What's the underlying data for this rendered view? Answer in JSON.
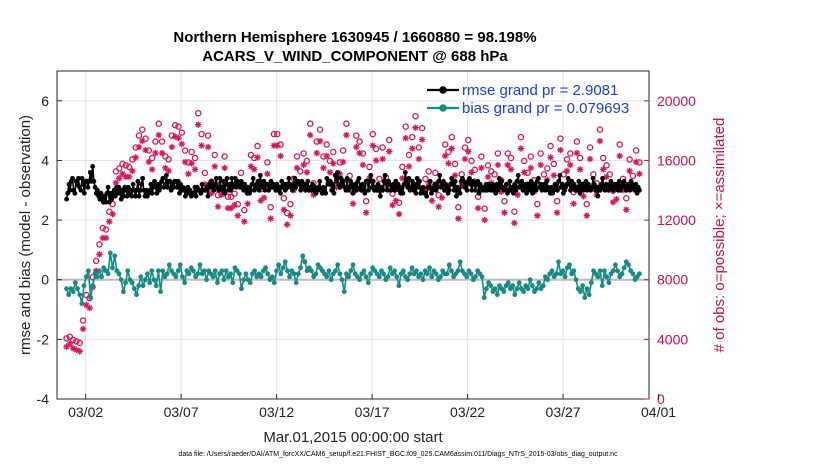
{
  "chart_data": {
    "type": "line",
    "title_line1": "Northern Hemisphere 1630945 / 1660880 = 98.198%",
    "title_line2": "ACARS_V_WIND_COMPONENT @ 688 hPa",
    "xlabel": "Mar.01,2015 00:00:00 start",
    "ylabel_left": "rmse and bias (model - observation)",
    "ylabel_right": "# of obs: o=possible; ×=assimilated",
    "footnote": "data file: /Users/raeder/DAI/ATM_forcXX/CAM6_setup/f.e21.FHIST_BGC.f09_025.CAM6assim.011/Diags_NTrS_2015-03/obs_diag_output.nc",
    "x_range_days": [
      0.5,
      31.5
    ],
    "x_ticks": [
      {
        "day": 2,
        "label": "03/02"
      },
      {
        "day": 7,
        "label": "03/07"
      },
      {
        "day": 12,
        "label": "03/12"
      },
      {
        "day": 17,
        "label": "03/17"
      },
      {
        "day": 22,
        "label": "03/22"
      },
      {
        "day": 27,
        "label": "03/27"
      },
      {
        "day": 32,
        "label": "04/01"
      }
    ],
    "ylim_left": [
      -4,
      7
    ],
    "yticks_left": [
      "-4",
      "-2",
      "0",
      "2",
      "4",
      "6"
    ],
    "ylim_right": [
      0,
      22000
    ],
    "yticks_right": [
      "0",
      "4000",
      "8000",
      "12000",
      "16000",
      "20000"
    ],
    "colors": {
      "rmse": "#000000",
      "bias": "#168a85",
      "obs": "#d6165c",
      "zero": "#bbbbbb",
      "legend_text": "#1a3fd6"
    },
    "legend": [
      {
        "name": "rmse grand pr = 2.9081",
        "series": "rmse"
      },
      {
        "name": "bias grand pr = 0.079693",
        "series": "bias"
      }
    ],
    "rmse": [
      2.7,
      2.9,
      3.2,
      3.0,
      3.3,
      3.4,
      3.0,
      2.9,
      3.3,
      3.2,
      3.4,
      3.1,
      3.0,
      3.4,
      3.2,
      2.9,
      3.3,
      3.3,
      3.1,
      3.3,
      3.6,
      3.3,
      3.8,
      3.3,
      3.1,
      2.9,
      3.0,
      2.8,
      2.7,
      2.9,
      2.7,
      2.6,
      2.8,
      2.6,
      2.9,
      3.1,
      2.6,
      2.9,
      2.7,
      2.9,
      3.0,
      2.8,
      3.1,
      2.9,
      3.1,
      2.9,
      2.7,
      3.0,
      2.8,
      3.1,
      3.0,
      2.8,
      3.1,
      2.9,
      3.0,
      2.8,
      3.2,
      3.0,
      2.8,
      3.0,
      3.3,
      2.8,
      3.0,
      3.2,
      3.4,
      3.0,
      2.8,
      3.0,
      2.8,
      2.9,
      3.0,
      3.2,
      2.9,
      3.1,
      3.3,
      3.1,
      2.9,
      3.2,
      3.0,
      3.1,
      3.3,
      3.4,
      3.1,
      3.2,
      3.5,
      3.1,
      3.3,
      3.3,
      3.0,
      3.2,
      3.1,
      3.3,
      3.3,
      3.1,
      3.3,
      2.9,
      3.2,
      3.0,
      3.1,
      3.0,
      2.8,
      3.0,
      3.1,
      2.9,
      3.0,
      2.8,
      2.9,
      2.9,
      3.1,
      2.8,
      3.1,
      3.0,
      3.0,
      2.9,
      3.2,
      3.0,
      3.0,
      3.0,
      3.1,
      2.8,
      3.2,
      3.1,
      3.3,
      3.1,
      3.0,
      3.2,
      3.4,
      3.1,
      3.0,
      3.4,
      3.1,
      3.0,
      3.3,
      2.9,
      3.2,
      3.4,
      3.0,
      3.2,
      3.0,
      3.4,
      3.1,
      3.2,
      3.4,
      3.1,
      3.3,
      3.2,
      3.1,
      3.3,
      3.2,
      3.0,
      3.2,
      3.0,
      2.9,
      3.1,
      2.9,
      3.0,
      3.2,
      3.4,
      3.0,
      3.1,
      3.2,
      3.3,
      3.0,
      3.5,
      3.2,
      3.1,
      3.3,
      3.0,
      3.2,
      3.2,
      3.0,
      3.1,
      3.3,
      3.1,
      3.2,
      3.1,
      3.0,
      3.2,
      3.0,
      3.1,
      2.9,
      3.3,
      3.1,
      3.2,
      3.0,
      3.2,
      3.1,
      3.4,
      3.2,
      3.1,
      3.0,
      3.2,
      3.4,
      3.1,
      3.3,
      3.3,
      3.2,
      3.0,
      3.3,
      3.1,
      3.2,
      3.0,
      3.1,
      3.3,
      3.0,
      3.1,
      3.0,
      3.2,
      3.0,
      3.1,
      2.9,
      3.0,
      3.1,
      3.3,
      3.0,
      2.9,
      3.1,
      3.0,
      2.9,
      3.4,
      3.2,
      3.2,
      3.3,
      3.0,
      3.2,
      2.9,
      3.5,
      3.3,
      3.6,
      3.2,
      3.1,
      3.4,
      3.2,
      3.3,
      3.1,
      3.0,
      3.4,
      3.0,
      3.1,
      3.3,
      3.2,
      2.9,
      3.1,
      3.2,
      3.0,
      3.3,
      3.4,
      3.1,
      3.0,
      3.2,
      3.1,
      2.9,
      3.3,
      3.3,
      3.0,
      3.3,
      3.5,
      3.1,
      3.3,
      3.0,
      3.1,
      3.0,
      3.2,
      3.0,
      2.8,
      3.1,
      3.0,
      3.3,
      3.5,
      3.2,
      3.0,
      3.3,
      3.2,
      3.0,
      3.1,
      3.2,
      3.0,
      3.3,
      3.1,
      3.2,
      3.0,
      2.9,
      3.1,
      2.9,
      3.2,
      3.6,
      3.3,
      3.1,
      3.4,
      3.0,
      3.1,
      3.3,
      3.0,
      3.2,
      2.9,
      3.4,
      3.1,
      3.3,
      2.9,
      3.0,
      3.1,
      2.9,
      2.9,
      2.8,
      3.1,
      3.1,
      3.3,
      2.9,
      3.0,
      3.1,
      3.2,
      3.0,
      3.1,
      3.3,
      3.5,
      3.1,
      3.2,
      3.3,
      3.0,
      3.2,
      3.1,
      2.9,
      3.0,
      3.2,
      3.4,
      3.2,
      3.0,
      3.3,
      2.8,
      3.1,
      3.0,
      2.9,
      3.3,
      3.4,
      3.3,
      3.1,
      3.2,
      3.0,
      3.3,
      3.4,
      3.2,
      3.0,
      3.3,
      3.2,
      3.0,
      3.2,
      3.3,
      2.9,
      3.2,
      3.1,
      3.0,
      3.1,
      3.0,
      3.2,
      3.0,
      3.2,
      3.1,
      3.0,
      3.2,
      3.0,
      3.1,
      2.9,
      3.2,
      3.0,
      3.4,
      3.1,
      3.3,
      3.1,
      3.0,
      3.1,
      3.2,
      2.9,
      3.0,
      3.3,
      3.0,
      3.1,
      2.9,
      3.2,
      3.0,
      3.3,
      3.5,
      3.1,
      3.1,
      3.3,
      3.0,
      3.1,
      3.2,
      2.9,
      3.1,
      3.2,
      3.0,
      3.3,
      2.9,
      3.2,
      3.1,
      3.0,
      3.3,
      3.4,
      3.1,
      3.2,
      3.0,
      3.1,
      3.2,
      3.0,
      3.3,
      3.1,
      3.0,
      2.9,
      3.1,
      2.9,
      3.0,
      3.2,
      3.1,
      3.0,
      3.3,
      3.5,
      3.1,
      3.2,
      2.9,
      3.0,
      3.1,
      3.2,
      3.4,
      3.2,
      3.0,
      3.3,
      3.1,
      3.2,
      3.0,
      3.1,
      3.0,
      3.3,
      2.9,
      3.1,
      3.2,
      3.0,
      3.1,
      3.3,
      3.0,
      3.2,
      3.1,
      3.0,
      3.1,
      3.4,
      3.2,
      3.0,
      3.1,
      2.8,
      3.1,
      3.0,
      3.2,
      3.4,
      3.1,
      3.0,
      3.2,
      3.1,
      3.0,
      3.2,
      3.3,
      3.1,
      3.0,
      3.2,
      3.1,
      3.2,
      3.0,
      3.3,
      3.0,
      3.1,
      3.2,
      3.3,
      3.1,
      3.0,
      3.2,
      3.1,
      3.0,
      3.3,
      3.2,
      3.1,
      3.0,
      3.2,
      2.9,
      3.1,
      3.0
    ],
    "bias": [
      -0.3,
      -0.5,
      -0.3,
      -0.4,
      -0.1,
      -0.3,
      -0.5,
      -0.8,
      -0.2,
      0.1,
      0.3,
      -0.6,
      -0.2,
      0.2,
      0.1,
      0.3,
      0.1,
      0.4,
      0.3,
      0.2,
      0.9,
      0.4,
      0.8,
      0.3,
      0.2,
      0.0,
      -0.4,
      -0.1,
      0.3,
      0.0,
      -0.1,
      -0.3,
      -0.5,
      -0.2,
      0.1,
      -0.2,
      0.0,
      0.2,
      -0.1,
      0.3,
      0.0,
      -0.2,
      0.3,
      -0.4,
      0.3,
      0.1,
      0.2,
      0.5,
      0.3,
      0.2,
      0.1,
      0.3,
      0.5,
      0.1,
      -0.1,
      0.3,
      0.2,
      0.4,
      0.3,
      0.1,
      0.2,
      0.5,
      0.2,
      0.3,
      0.0,
      0.3,
      0.2,
      0.1,
      0.3,
      -0.1,
      0.2,
      0.3,
      0.0,
      0.3,
      0.1,
      0.2,
      -0.1,
      0.4,
      0.3,
      0.2,
      -0.3,
      0.0,
      0.2,
      0.0,
      -0.1,
      0.2,
      0.3,
      0.1,
      0.2,
      0.1,
      0.3,
      0.4,
      0.2,
      0.0,
      0.1,
      -0.1,
      0.3,
      0.5,
      0.2,
      0.4,
      0.6,
      0.3,
      0.1,
      0.3,
      0.2,
      -0.1,
      0.2,
      0.4,
      0.8,
      0.6,
      0.3,
      0.4,
      0.3,
      0.1,
      0.2,
      0.5,
      0.4,
      0.3,
      0.2,
      0.1,
      0.3,
      0.0,
      0.2,
      0.3,
      0.5,
      0.2,
      0.0,
      -0.4,
      0.2,
      0.1,
      0.3,
      0.5,
      0.2,
      0.1,
      0.0,
      0.2,
      0.3,
      0.1,
      -0.1,
      0.2,
      0.4,
      0.3,
      0.2,
      0.1,
      0.3,
      0.2,
      0.0,
      0.1,
      0.4,
      0.2,
      0.3,
      0.1,
      -0.2,
      0.2,
      0.3,
      0.1,
      0.0,
      0.2,
      0.4,
      0.2,
      0.3,
      0.1,
      0.2,
      0.0,
      0.3,
      0.2,
      0.4,
      0.1,
      0.3,
      0.2,
      0.0,
      0.1,
      0.3,
      0.2,
      0.2,
      0.5,
      0.3,
      0.1,
      0.2,
      0.3,
      0.6,
      0.3,
      0.2,
      0.1,
      0.3,
      0.2,
      0.0,
      0.1,
      0.3,
      0.2,
      0.1,
      -0.6,
      -0.3,
      -0.1,
      -0.2,
      -0.4,
      -0.3,
      -0.5,
      -0.2,
      -0.3,
      -0.4,
      -0.2,
      -0.1,
      -0.3,
      -0.2,
      -0.5,
      -0.3,
      -0.1,
      -0.3,
      -0.4,
      -0.2,
      -0.3,
      0.0,
      -0.2,
      -0.4,
      -0.3,
      -0.1,
      -0.3,
      -0.2,
      0.1,
      0.0,
      0.2,
      0.3,
      0.1,
      0.2,
      0.6,
      0.2,
      0.3,
      0.1,
      0.4,
      0.5,
      0.2,
      0.3,
      0.0,
      -0.3,
      -0.4,
      -0.2,
      -0.6,
      -0.3,
      -0.5,
      -0.1,
      0.3,
      0.2,
      0.1,
      0.3,
      -0.2,
      0.3,
      0.1,
      -0.1,
      0.2,
      0.3,
      0.5,
      0.3,
      0.1,
      0.2,
      0.4,
      0.6,
      0.5,
      0.3,
      0.2,
      0.0,
      0.1,
      0.2
    ],
    "obs_possible": [
      3800,
      3900,
      3700,
      3600,
      3500,
      5000,
      6700,
      6500,
      7900,
      9000,
      10100,
      11200,
      11100,
      12300,
      12800,
      15000,
      15200,
      15500,
      15400,
      15300,
      15800,
      16600,
      17400,
      17800,
      17200,
      16400,
      15900,
      17000,
      18200,
      17000,
      16000,
      15800,
      17400,
      18100,
      18000,
      17600,
      16400,
      15600,
      16300,
      15900,
      18900,
      17500,
      14900,
      17400,
      14300,
      16100,
      13400,
      14200,
      16000,
      13300,
      13300,
      13500,
      12800,
      14900,
      12400,
      13600,
      16100,
      15900,
      16700,
      13800,
      14000,
      15600,
      12600,
      17500,
      17500,
      16800,
      13200,
      12200,
      12800,
      14500,
      16000,
      15000,
      16200,
      15700,
      18200,
      14200,
      17000,
      17800,
      16000,
      16800,
      15700,
      16300,
      14700,
      15600,
      16400,
      18200,
      14700,
      13600,
      17400,
      17000,
      16200,
      13000,
      15300,
      17500,
      16500,
      14500,
      16600,
      14600,
      17100,
      13500,
      13800,
      12900,
      15300,
      18000,
      16100,
      17300,
      18700,
      16600,
      17900,
      14500,
      15000,
      13800,
      14900,
      13400,
      14000,
      16800,
      16300,
      17300,
      15500,
      12600,
      14800,
      16600,
      17100,
      15700,
      15100,
      13300,
      16000,
      12500,
      15400,
      15000,
      14800,
      16200,
      14400,
      13000,
      16200,
      15900,
      12300,
      14200,
      17300,
      15700,
      14900,
      16000,
      14400,
      12800,
      16200,
      14800,
      15200,
      16700,
      15500,
      13000,
      17200,
      14800,
      15800,
      16200,
      13600,
      17000,
      15900,
      14100,
      12800,
      16600,
      14800,
      14200,
      17800,
      15900,
      15400,
      14800,
      13700,
      13900,
      16800,
      14500,
      13200,
      15800,
      14700,
      16400,
      15600
    ],
    "obs_assimilated": [
      3500,
      3700,
      3400,
      3300,
      3200,
      4700,
      6300,
      6100,
      7500,
      8600,
      9700,
      10800,
      10800,
      11900,
      12400,
      14500,
      14800,
      15100,
      14900,
      14900,
      15300,
      16200,
      16900,
      17300,
      16700,
      15900,
      15400,
      16500,
      17700,
      16500,
      15500,
      15300,
      16900,
      17600,
      17500,
      17100,
      15900,
      15100,
      15800,
      15400,
      18400,
      17000,
      14400,
      16900,
      13800,
      15600,
      12900,
      13700,
      15500,
      12800,
      12800,
      13000,
      12300,
      14400,
      11900,
      13100,
      15600,
      15400,
      16200,
      13300,
      13500,
      15100,
      12100,
      17000,
      17000,
      16300,
      12700,
      11700,
      12300,
      14000,
      15500,
      14500,
      15700,
      15200,
      17700,
      13700,
      16500,
      17300,
      15500,
      16300,
      15200,
      15800,
      14200,
      15100,
      15900,
      17700,
      14200,
      13100,
      16900,
      16500,
      15700,
      12500,
      14800,
      17000,
      16000,
      14000,
      16100,
      14100,
      16600,
      13000,
      13300,
      12400,
      14800,
      17500,
      15600,
      16800,
      18200,
      16100,
      17400,
      14000,
      14500,
      13300,
      14400,
      12900,
      13500,
      16300,
      15800,
      16800,
      15000,
      12100,
      14300,
      16100,
      16600,
      15200,
      14600,
      12800,
      15500,
      12000,
      14900,
      14500,
      14300,
      15700,
      13900,
      12500,
      15700,
      15400,
      11800,
      13700,
      16800,
      15200,
      14400,
      15500,
      13900,
      12300,
      15700,
      14300,
      14700,
      16200,
      15000,
      12500,
      16700,
      14300,
      15300,
      15700,
      13100,
      16500,
      15400,
      13600,
      12300,
      16100,
      14300,
      13700,
      17300,
      15400,
      14900,
      14300,
      13200,
      13400,
      16300,
      14000,
      12700,
      15300,
      14200,
      15900,
      15100
    ]
  }
}
